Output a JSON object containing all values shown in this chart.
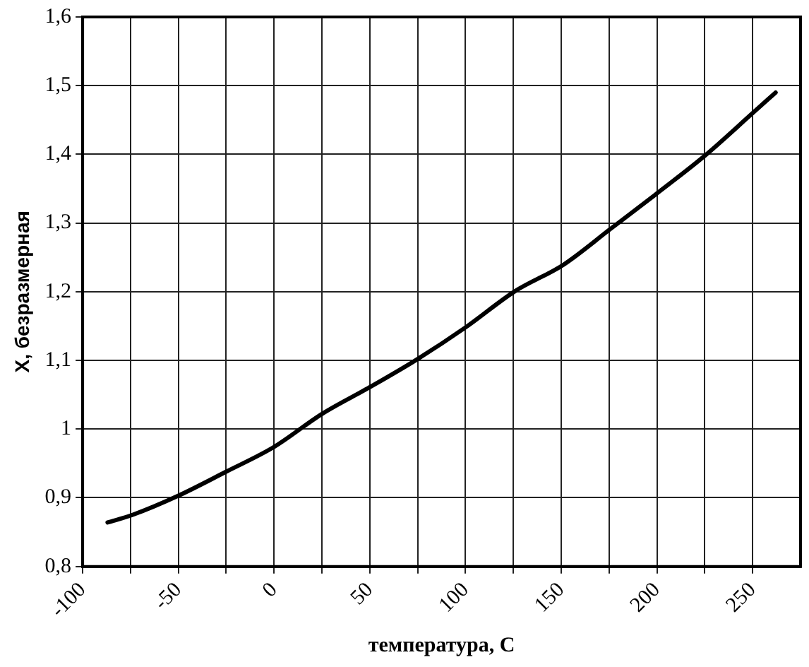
{
  "chart_data": {
    "type": "line",
    "xlabel": "температура, С",
    "ylabel": "X, безразмерная",
    "x": [
      -87,
      -74,
      -50,
      -25,
      0,
      25,
      50,
      75,
      100,
      126,
      151,
      176,
      199,
      225,
      250,
      262
    ],
    "series": [
      {
        "color": "#000000",
        "values": [
          0.864,
          0.875,
          0.903,
          0.938,
          0.974,
          1.022,
          1.061,
          1.102,
          1.148,
          1.201,
          1.239,
          1.292,
          1.341,
          1.398,
          1.46,
          1.49
        ]
      }
    ],
    "xlim": [
      -100,
      275
    ],
    "xticks": [
      -100,
      {
        "value": -75,
        "label": null
      },
      -50,
      {
        "value": -25,
        "label": null
      },
      0,
      {
        "value": 25,
        "label": null
      },
      50,
      {
        "value": 75,
        "label": null
      },
      100,
      {
        "value": 125,
        "label": null
      },
      150,
      {
        "value": 175,
        "label": null
      },
      200,
      {
        "value": 225,
        "label": null
      },
      250
    ],
    "ylim": [
      0.8,
      1.6
    ],
    "yticks": [
      {
        "value": 0.8,
        "label": "0,8"
      },
      {
        "value": 0.9,
        "label": "0,9"
      },
      1,
      {
        "value": 1.1,
        "label": "1,1"
      },
      {
        "value": 1.2,
        "label": "1,2"
      },
      {
        "value": 1.3,
        "label": "1,3"
      },
      {
        "value": 1.4,
        "label": "1,4"
      },
      {
        "value": 1.5,
        "label": "1,5"
      },
      {
        "value": 1.6,
        "label": "1,6"
      }
    ],
    "grid": true,
    "legend": false,
    "marker": "none",
    "line_style": "solid"
  }
}
